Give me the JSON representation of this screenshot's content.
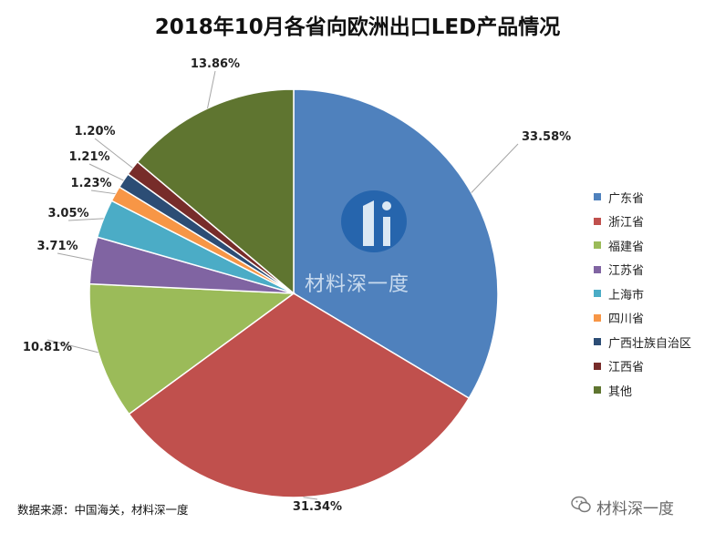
{
  "chart_data": {
    "type": "pie",
    "title": "2018年10月各省向欧洲出口LED产品情况",
    "slices": [
      {
        "label": "广东省",
        "value": 33.58,
        "display": "33.58%",
        "color": "#4f81bd"
      },
      {
        "label": "浙江省",
        "value": 31.34,
        "display": "31.34%",
        "color": "#c0504d"
      },
      {
        "label": "福建省",
        "value": 10.81,
        "display": "10.81%",
        "color": "#9bbb59"
      },
      {
        "label": "江苏省",
        "value": 3.71,
        "display": "3.71%",
        "color": "#8064a2"
      },
      {
        "label": "上海市",
        "value": 3.05,
        "display": "3.05%",
        "color": "#4bacc6"
      },
      {
        "label": "四川省",
        "value": 1.23,
        "display": "1.23%",
        "color": "#f79646"
      },
      {
        "label": "广西壮族自治区",
        "value": 1.21,
        "display": "1.21%",
        "color": "#2c4d75"
      },
      {
        "label": "江西省",
        "value": 1.2,
        "display": "1.20%",
        "color": "#772c2a"
      },
      {
        "label": "其他",
        "value": 13.86,
        "display": "13.86%",
        "color": "#5f7530"
      }
    ],
    "legend_position": "right"
  },
  "source_note": "数据来源：中国海关，材料深一度",
  "watermark_text": "材料深一度",
  "brand_text": "材料深一度"
}
